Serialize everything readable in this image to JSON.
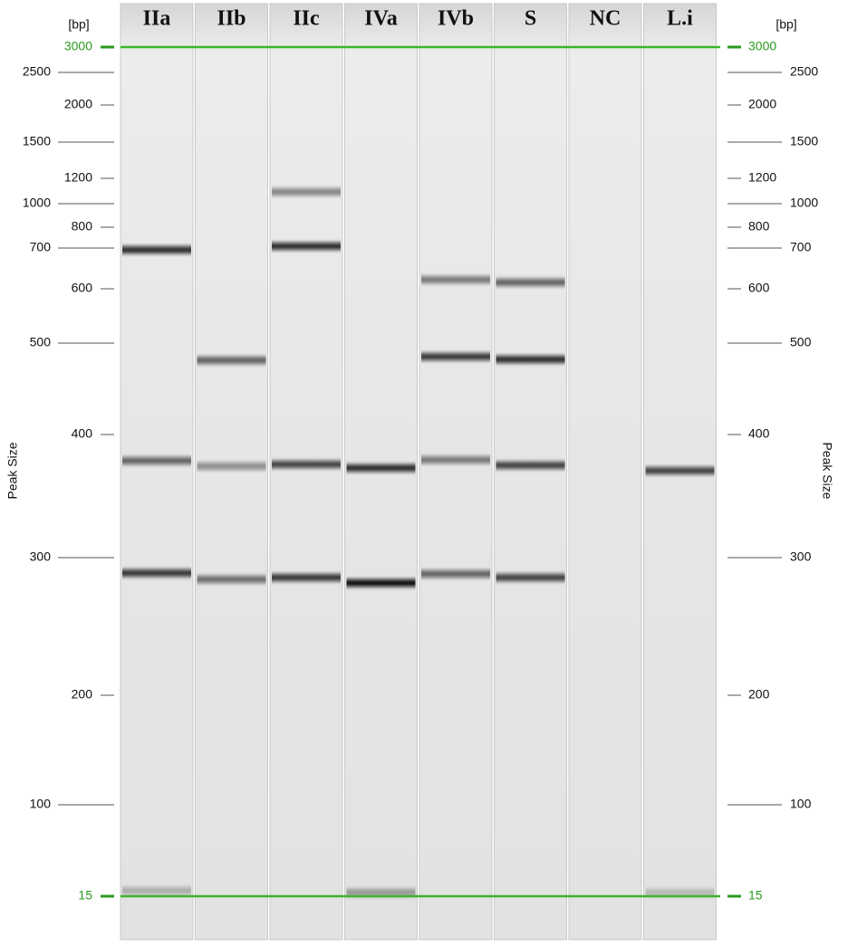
{
  "unit_left": "[bp]",
  "unit_right": "[bp]",
  "axis_title_left": "Peak Size",
  "axis_title_right": "Peak Size",
  "lanes": [
    "IIa",
    "IIb",
    "IIc",
    "IVa",
    "IVb",
    "S",
    "NC",
    "L.i"
  ],
  "ladder": [
    "3000",
    "2500",
    "2000",
    "1500",
    "1200",
    "1000",
    "800",
    "700",
    "600",
    "500",
    "400",
    "300",
    "200",
    "100",
    "15"
  ]
}
